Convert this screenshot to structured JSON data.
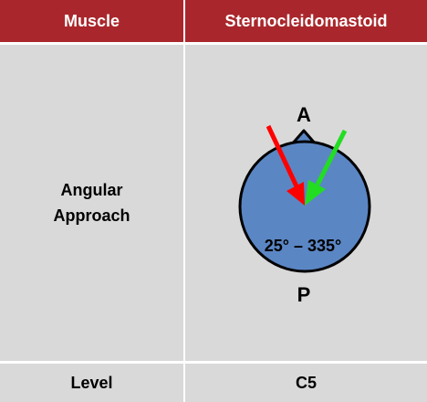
{
  "header": {
    "col1": "Muscle",
    "col2": "Sternocleidomastoid"
  },
  "rows": {
    "approach": {
      "label": "Angular Approach",
      "diagram": {
        "anterior_label": "A",
        "posterior_label": "P",
        "angle_range": "25° – 335°"
      }
    },
    "level": {
      "label": "Level",
      "value": "C5"
    }
  },
  "colors": {
    "header_bg": "#a9272c",
    "cell_bg": "#d9d9d9",
    "circle_fill": "#5b86c4",
    "arrow_red": "#ff0000",
    "arrow_green": "#22dd22"
  }
}
